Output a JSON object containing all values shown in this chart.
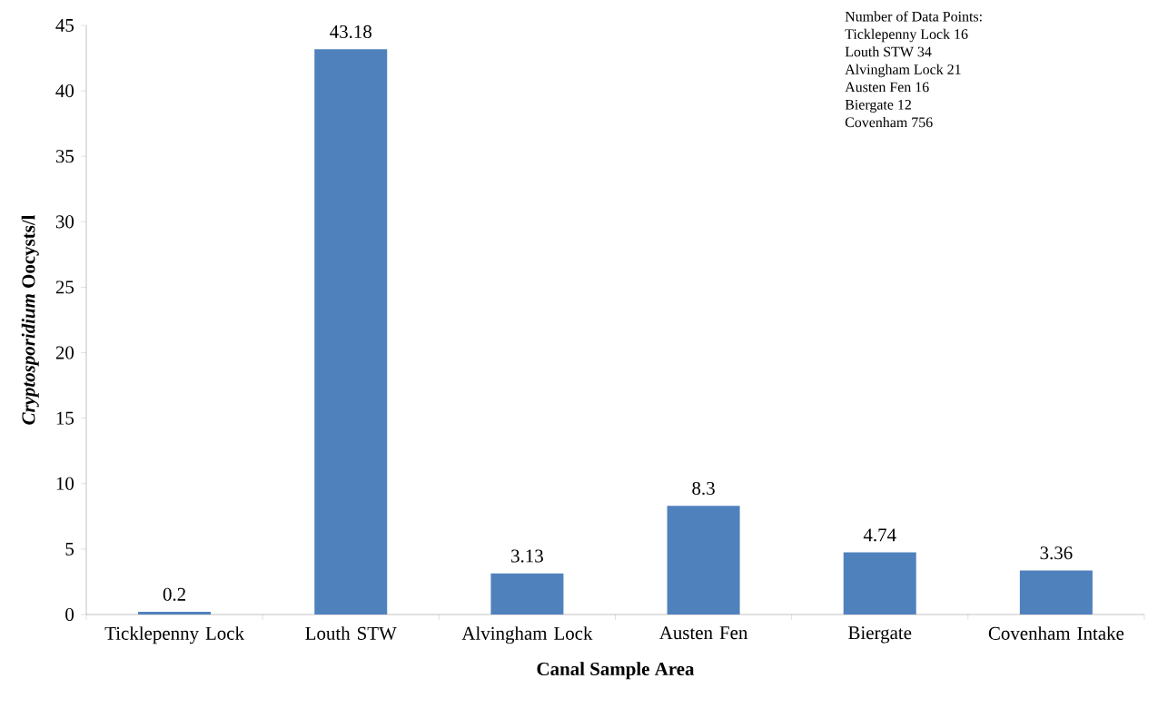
{
  "chart_data": {
    "type": "bar",
    "xlabel": "Canal Sample Area",
    "ylabel": "*Cryptosporidium* Oocysts/l",
    "categories": [
      "Ticklepenny Lock",
      "Louth STW",
      "Alvingham Lock",
      "Austen Fen",
      "Biergate",
      "Covenham Intake"
    ],
    "values": [
      0.2,
      43.18,
      3.13,
      8.3,
      4.74,
      3.36
    ],
    "color": "#4f81bd",
    "ylim": [
      0,
      45
    ],
    "yticks": [
      0,
      5,
      10,
      15,
      20,
      25,
      30,
      35,
      40,
      45
    ],
    "data_labels": true,
    "grid": false,
    "annotations": [
      "Number of Data Points:",
      "Ticklepenny Lock 16",
      "Louth STW 34",
      "Alvingham Lock 21",
      "Austen Fen 16",
      "Biergate 12",
      "Covenham 756"
    ]
  }
}
